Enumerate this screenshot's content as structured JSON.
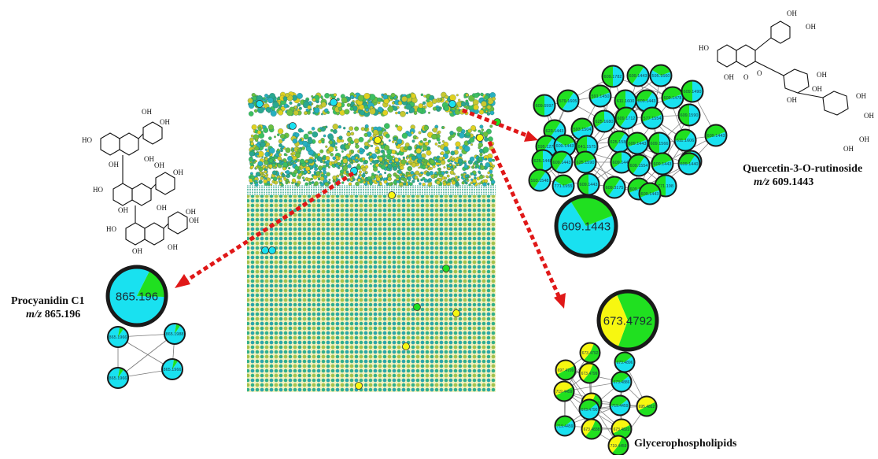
{
  "labels": {
    "procyanidin_name": "Procyanidin  C1",
    "procyanidin_mz_prefix": "m/z",
    "procyanidin_mz_value": "865.196",
    "quercetin_name": "Quercetin-3-O-rutinoside",
    "quercetin_mz_prefix": "m/z",
    "quercetin_mz_value": "609.1443",
    "glycero_name": "Glycerophospholipids"
  },
  "hubs": {
    "procyanidin": "865.196",
    "quercetin": "609.1443",
    "glycero": "673.4792"
  },
  "clusters": {
    "quercetin_nodes": [
      "609.1782",
      "609.1443",
      "595.1660",
      "609.6997",
      "579.1605",
      "591.1450",
      "611.1600",
      "609.1443",
      "609.1478",
      "609.1490",
      "623.1443",
      "593.1504",
      "625.1680",
      "609.1712",
      "577.1554",
      "609.1590",
      "595.1271",
      "609.1443",
      "641.1575",
      "625.1580",
      "609.1443",
      "609.1566",
      "611.1606",
      "609.1443",
      "625.1448",
      "609.1443",
      "625.1590",
      "609.1442",
      "609.1554",
      "609.1443",
      "609.1516",
      "593.1548",
      "771.1955",
      "609.1443",
      "609.3175",
      "609.1520",
      "771.198",
      "609.1440",
      "609.1443"
    ],
    "procyanidin_nodes": [
      "865.1966",
      "865.1988",
      "865.1966",
      "865.1966"
    ],
    "glycero_nodes": [
      "673.4792",
      "673.4896",
      "697.4799",
      "673.4799",
      "673.4886",
      "719.4459",
      "671.4620",
      "719.4459",
      "695.4812",
      "673.4838",
      "719.4459",
      "673.4822",
      "719.4459",
      "673.4790"
    ]
  },
  "colors": {
    "cyan": "#19e1f0",
    "green": "#20e020",
    "yellow": "#f7f710",
    "arrow": "#e01818",
    "outline": "#1a1a1a"
  }
}
